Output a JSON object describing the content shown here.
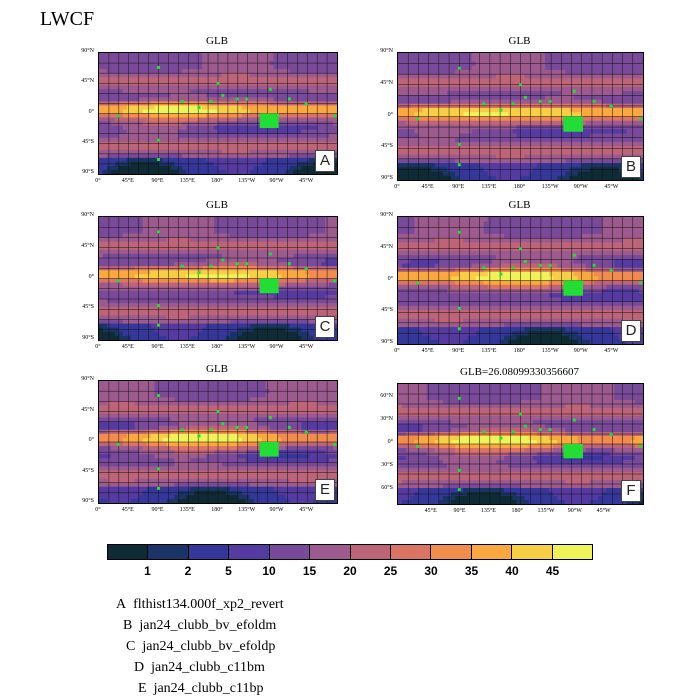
{
  "page_title": "LWCF",
  "chart_data": [
    {
      "type": "heatmap",
      "title": "GLB",
      "label": "A",
      "yticks": [
        "90°N",
        "45°N",
        "0°",
        "45°S",
        "90°S"
      ],
      "xticks": [
        "0°",
        "45°E",
        "90°E",
        "135°E",
        "180°",
        "135°W",
        "90°W",
        "45°W"
      ]
    },
    {
      "type": "heatmap",
      "title": "GLB",
      "label": "B",
      "yticks": [
        "90°N",
        "45°N",
        "0°",
        "45°S",
        "90°S"
      ],
      "xticks": [
        "0°",
        "45°E",
        "90°E",
        "135°E",
        "180°",
        "135°W",
        "90°W",
        "45°W"
      ]
    },
    {
      "type": "heatmap",
      "title": "GLB",
      "label": "C",
      "yticks": [
        "90°N",
        "45°N",
        "0°",
        "45°S",
        "90°S"
      ],
      "xticks": [
        "0°",
        "45°E",
        "90°E",
        "135°E",
        "180°",
        "135°W",
        "90°W",
        "45°W"
      ]
    },
    {
      "type": "heatmap",
      "title": "GLB",
      "label": "D",
      "yticks": [
        "90°N",
        "45°N",
        "0°",
        "45°S",
        "90°S"
      ],
      "xticks": [
        "0°",
        "45°E",
        "90°E",
        "135°E",
        "180°",
        "135°W",
        "90°W",
        "45°W"
      ]
    },
    {
      "type": "heatmap",
      "title": "GLB",
      "label": "E",
      "yticks": [
        "90°N",
        "45°N",
        "0°",
        "45°S",
        "90°S"
      ],
      "xticks": [
        "0°",
        "45°E",
        "90°E",
        "135°E",
        "180°",
        "135°W",
        "90°W",
        "45°W"
      ]
    },
    {
      "type": "heatmap",
      "title": "GLB=26.08099330356607",
      "label": "F",
      "yticks": [
        "60°N",
        "30°N",
        "0°",
        "30°S",
        "60°S"
      ],
      "xticks": [
        "45°E",
        "90°E",
        "135°E",
        "180°",
        "135°W",
        "90°W",
        "45°W"
      ]
    }
  ],
  "colorbar": {
    "labels": [
      "1",
      "2",
      "5",
      "10",
      "15",
      "20",
      "25",
      "30",
      "35",
      "40",
      "45"
    ],
    "colors": [
      "#0f2b35",
      "#1a3466",
      "#35379a",
      "#553ba1",
      "#7a4a9a",
      "#9c5a8e",
      "#bd6478",
      "#db7464",
      "#f18c4d",
      "#f9a93d",
      "#f7cf45",
      "#eef35a"
    ]
  },
  "legend": [
    {
      "letter": "A",
      "name": "flthist134.000f_xp2_revert"
    },
    {
      "letter": "B",
      "name": "jan24_clubb_bv_efoldm"
    },
    {
      "letter": "C",
      "name": "jan24_clubb_bv_efoldp"
    },
    {
      "letter": "D",
      "name": "jan24_clubb_c11bm"
    },
    {
      "letter": "E",
      "name": "jan24_clubb_c11bp"
    }
  ]
}
